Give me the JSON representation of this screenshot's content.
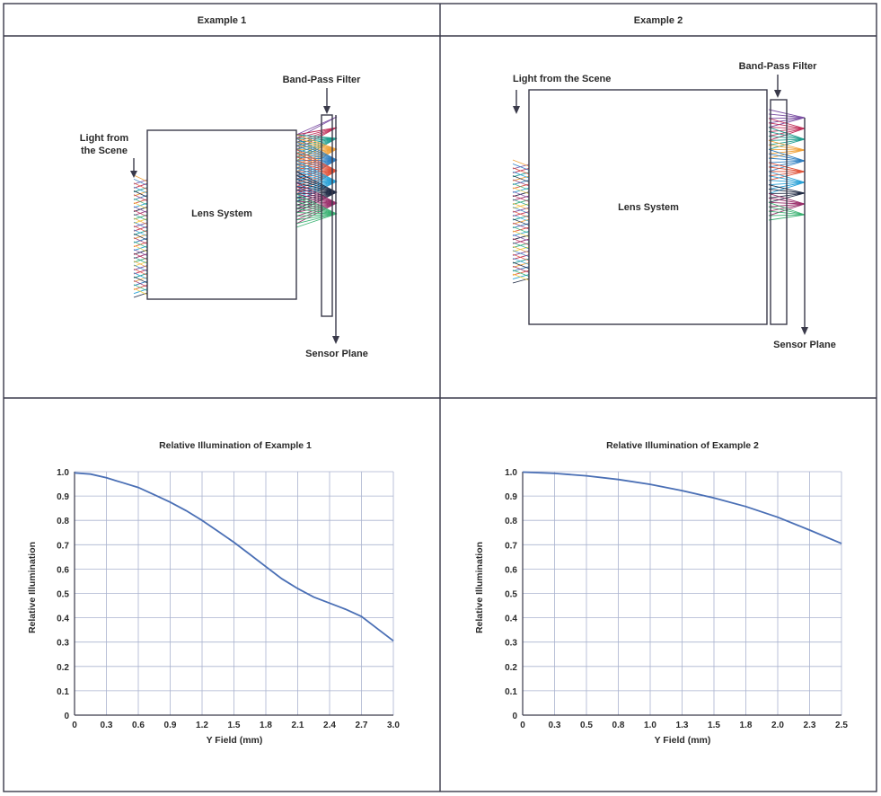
{
  "panels": {
    "example1_header": "Example 1",
    "example2_header": "Example 2"
  },
  "diagram1": {
    "light_label_line1": "Light from",
    "light_label_line2": "the Scene",
    "lens_label": "Lens System",
    "filter_label": "Band-Pass Filter",
    "sensor_label": "Sensor Plane"
  },
  "diagram2": {
    "light_label": "Light from the Scene",
    "lens_label": "Lens System",
    "filter_label": "Band-Pass Filter",
    "sensor_label": "Sensor Plane"
  },
  "colors": {
    "ray_palette": [
      "#7b4fa3",
      "#c0305a",
      "#1f9e8f",
      "#f0a23a",
      "#2f7fc1",
      "#e0533a",
      "#2aa2d8",
      "#1f2a44",
      "#9a2f6b",
      "#3bb273",
      "#f4d03f"
    ],
    "curve": "#4a6fb5",
    "grid": "#aab3cf"
  },
  "chart_data": [
    {
      "type": "line",
      "title": "Relative Illumination of Example 1",
      "xlabel": "Y Field (mm)",
      "ylabel": "Relative Illumination",
      "xticks": [
        "0",
        "0.3",
        "0.6",
        "0.9",
        "1.2",
        "1.5",
        "1.8",
        "2.1",
        "2.4",
        "2.7",
        "3.0"
      ],
      "yticks": [
        "0",
        "0.1",
        "0.2",
        "0.3",
        "0.4",
        "0.5",
        "0.6",
        "0.7",
        "0.8",
        "0.9",
        "1.0"
      ],
      "xlim": [
        0,
        3.0
      ],
      "ylim": [
        0,
        1.0
      ],
      "grid": true,
      "x": [
        0,
        0.15,
        0.3,
        0.45,
        0.6,
        0.75,
        0.9,
        1.05,
        1.2,
        1.35,
        1.5,
        1.65,
        1.8,
        1.95,
        2.1,
        2.25,
        2.4,
        2.55,
        2.7,
        2.85,
        3.0
      ],
      "y": [
        0.995,
        0.99,
        0.975,
        0.955,
        0.935,
        0.905,
        0.875,
        0.84,
        0.8,
        0.755,
        0.71,
        0.66,
        0.61,
        0.56,
        0.52,
        0.485,
        0.46,
        0.435,
        0.405,
        0.355,
        0.305
      ]
    },
    {
      "type": "line",
      "title": "Relative Illumination of Example 2",
      "xlabel": "Y Field (mm)",
      "ylabel": "Relative Illumination",
      "xticks": [
        "0",
        "0.3",
        "0.5",
        "0.8",
        "1.0",
        "1.3",
        "1.5",
        "1.8",
        "2.0",
        "2.3",
        "2.5"
      ],
      "yticks": [
        "0",
        "0.1",
        "0.2",
        "0.3",
        "0.4",
        "0.5",
        "0.6",
        "0.7",
        "0.8",
        "0.9",
        "1.0"
      ],
      "xlim": [
        0,
        2.5
      ],
      "ylim": [
        0,
        1.0
      ],
      "grid": true,
      "x": [
        0,
        0.25,
        0.5,
        0.75,
        1.0,
        1.25,
        1.5,
        1.75,
        2.0,
        2.25,
        2.5
      ],
      "y": [
        0.998,
        0.993,
        0.983,
        0.968,
        0.948,
        0.922,
        0.892,
        0.857,
        0.813,
        0.76,
        0.705
      ]
    }
  ]
}
